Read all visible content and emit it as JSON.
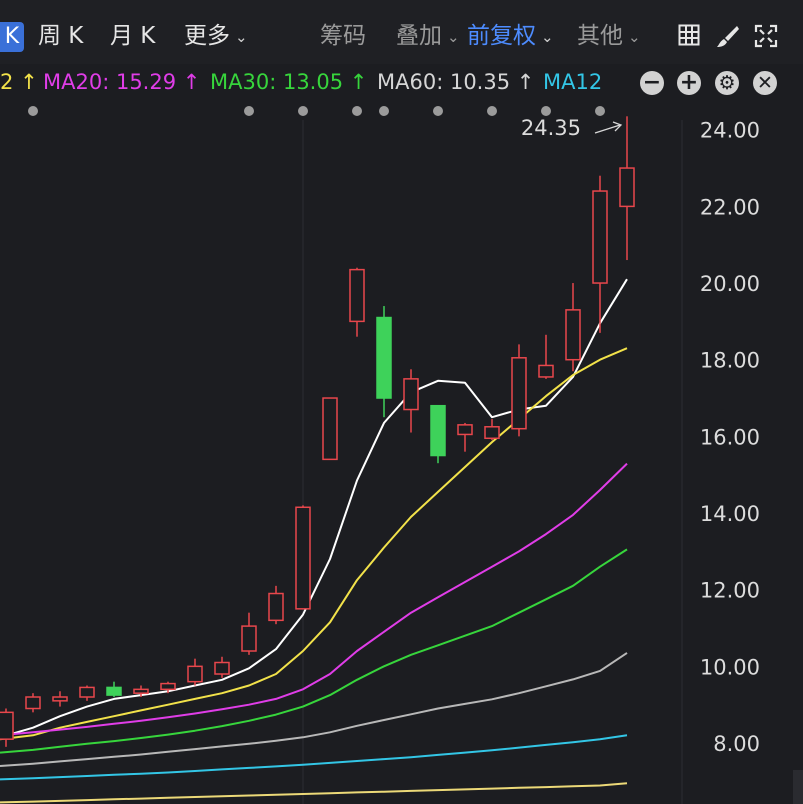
{
  "toolbar": {
    "active_period": "K",
    "period_tabs": [
      "周 K",
      "月 K",
      "更多"
    ],
    "chip_label": "筹码",
    "overlay_label": "叠加",
    "adjust_label": "前复权",
    "other_label": "其他"
  },
  "ma_legend": {
    "ma10_tail": "2",
    "ma10_arrow": "↑",
    "ma20": "MA20: 15.29",
    "ma20_arrow": "↑",
    "ma30": "MA30: 13.05",
    "ma30_arrow": "↑",
    "ma60": "MA60: 10.35",
    "ma60_arrow": "↑",
    "ma120": "MA12"
  },
  "colors": {
    "up": "#e8474c",
    "down": "#3ed25a",
    "ma5": "#ffffff",
    "ma10": "#f2e24a",
    "ma20": "#e03de8",
    "ma30": "#37d53c",
    "ma60": "#b8b8b8",
    "ma120": "#33c6e6",
    "ma250": "#ecd978"
  },
  "chart_data": {
    "type": "candlestick",
    "y_axis": {
      "ticks": [
        "24.00",
        "22.00",
        "20.00",
        "18.00",
        "16.00",
        "14.00",
        "12.00",
        "10.00",
        "8.00"
      ],
      "ylim": [
        7.2,
        24.4
      ]
    },
    "max_label": "24.35",
    "max_value": 24.35,
    "candles": [
      {
        "o": 8.1,
        "h": 8.9,
        "l": 7.9,
        "c": 8.8
      },
      {
        "o": 8.9,
        "h": 9.3,
        "l": 8.8,
        "c": 9.2
      },
      {
        "o": 9.1,
        "h": 9.35,
        "l": 8.95,
        "c": 9.2
      },
      {
        "o": 9.2,
        "h": 9.5,
        "l": 9.1,
        "c": 9.45
      },
      {
        "o": 9.45,
        "h": 9.6,
        "l": 9.2,
        "c": 9.25
      },
      {
        "o": 9.3,
        "h": 9.5,
        "l": 9.2,
        "c": 9.4
      },
      {
        "o": 9.4,
        "h": 9.6,
        "l": 9.3,
        "c": 9.55
      },
      {
        "o": 9.6,
        "h": 10.2,
        "l": 9.5,
        "c": 10.0
      },
      {
        "o": 9.8,
        "h": 10.25,
        "l": 9.7,
        "c": 10.1
      },
      {
        "o": 10.4,
        "h": 11.4,
        "l": 10.3,
        "c": 11.05
      },
      {
        "o": 11.2,
        "h": 12.1,
        "l": 11.1,
        "c": 11.9
      },
      {
        "o": 11.5,
        "h": 14.2,
        "l": 11.5,
        "c": 14.15
      },
      {
        "o": 15.4,
        "h": 17.0,
        "l": 15.4,
        "c": 17.0
      },
      {
        "o": 19.0,
        "h": 20.4,
        "l": 18.6,
        "c": 20.35
      },
      {
        "o": 19.1,
        "h": 19.4,
        "l": 16.5,
        "c": 17.0
      },
      {
        "o": 16.7,
        "h": 17.75,
        "l": 16.1,
        "c": 17.5
      },
      {
        "o": 16.8,
        "h": 16.8,
        "l": 15.3,
        "c": 15.5
      },
      {
        "o": 16.05,
        "h": 16.35,
        "l": 15.6,
        "c": 16.3
      },
      {
        "o": 15.95,
        "h": 16.45,
        "l": 15.9,
        "c": 16.25
      },
      {
        "o": 16.2,
        "h": 18.4,
        "l": 16.0,
        "c": 18.05
      },
      {
        "o": 17.55,
        "h": 18.65,
        "l": 17.5,
        "c": 17.85
      },
      {
        "o": 18.0,
        "h": 20.0,
        "l": 17.7,
        "c": 19.3
      },
      {
        "o": 20.0,
        "h": 22.8,
        "l": 18.7,
        "c": 22.4
      },
      {
        "o": 22.0,
        "h": 24.35,
        "l": 20.6,
        "c": 23.0
      }
    ],
    "ma_series": [
      {
        "name": "MA5",
        "values": [
          8.15,
          8.4,
          8.7,
          8.95,
          9.15,
          9.25,
          9.35,
          9.5,
          9.65,
          9.95,
          10.45,
          11.35,
          12.8,
          14.85,
          16.35,
          17.15,
          17.45,
          17.4,
          16.5,
          16.7,
          16.8,
          17.55,
          18.95,
          20.1
        ]
      },
      {
        "name": "MA10",
        "values": [
          8.1,
          8.2,
          8.4,
          8.55,
          8.7,
          8.85,
          9.0,
          9.15,
          9.3,
          9.5,
          9.8,
          10.4,
          11.15,
          12.25,
          13.1,
          13.9,
          14.55,
          15.2,
          15.85,
          16.45,
          17.05,
          17.6,
          18.0,
          18.3
        ]
      },
      {
        "name": "MA20",
        "values": [
          8.2,
          8.28,
          8.35,
          8.42,
          8.5,
          8.58,
          8.67,
          8.77,
          8.88,
          9.0,
          9.15,
          9.4,
          9.8,
          10.4,
          10.9,
          11.4,
          11.8,
          12.2,
          12.6,
          13.0,
          13.45,
          13.95,
          14.6,
          15.29
        ]
      },
      {
        "name": "MA30",
        "values": [
          7.75,
          7.82,
          7.9,
          7.98,
          8.05,
          8.13,
          8.22,
          8.32,
          8.44,
          8.58,
          8.74,
          8.95,
          9.25,
          9.65,
          10.0,
          10.3,
          10.55,
          10.8,
          11.05,
          11.4,
          11.75,
          12.1,
          12.6,
          13.05
        ]
      },
      {
        "name": "MA60",
        "values": [
          7.4,
          7.46,
          7.52,
          7.58,
          7.64,
          7.7,
          7.77,
          7.84,
          7.91,
          7.98,
          8.06,
          8.15,
          8.28,
          8.45,
          8.6,
          8.75,
          8.9,
          9.02,
          9.14,
          9.3,
          9.48,
          9.66,
          9.88,
          10.35
        ]
      },
      {
        "name": "MA120",
        "values": [
          7.05,
          7.08,
          7.11,
          7.14,
          7.17,
          7.2,
          7.23,
          7.27,
          7.31,
          7.35,
          7.39,
          7.43,
          7.48,
          7.53,
          7.58,
          7.63,
          7.69,
          7.75,
          7.81,
          7.88,
          7.95,
          8.02,
          8.1,
          8.2
        ]
      },
      {
        "name": "MA250",
        "values": [
          6.45,
          6.47,
          6.49,
          6.51,
          6.53,
          6.55,
          6.57,
          6.59,
          6.61,
          6.63,
          6.65,
          6.67,
          6.69,
          6.71,
          6.73,
          6.75,
          6.77,
          6.79,
          6.81,
          6.83,
          6.85,
          6.87,
          6.89,
          6.95
        ]
      }
    ]
  }
}
